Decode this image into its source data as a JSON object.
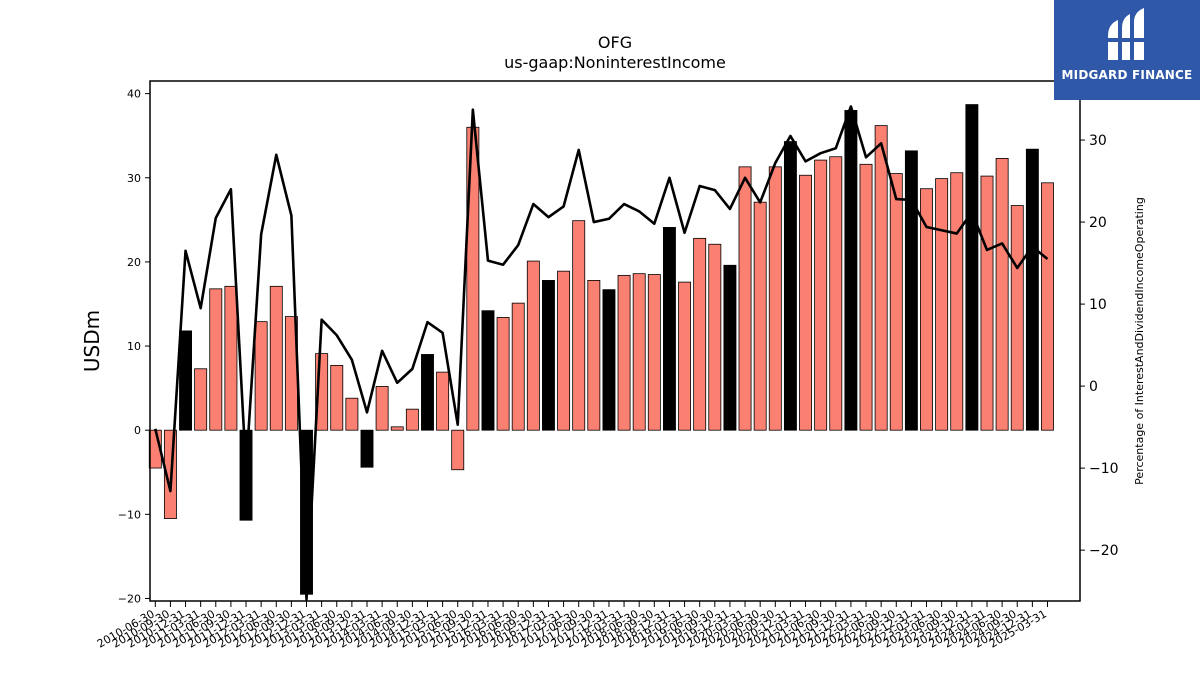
{
  "chart_data": {
    "type": "bar",
    "title": "OFG",
    "subtitle": "us-gaap:NoninterestIncome",
    "ylabel": "USDm",
    "y2label": "Percentage of InterestAndDividendIncomeOperating",
    "ylim": [
      -20.3,
      41.5
    ],
    "y2lim": [
      -26.2,
      37.2
    ],
    "yticks": [
      -20,
      -10,
      0,
      10,
      20,
      30,
      40
    ],
    "y2ticks": [
      -20,
      -10,
      0,
      10,
      20,
      30
    ],
    "colors": {
      "bar": "#fa8072",
      "q4_bar": "#000000",
      "line": "#000000"
    },
    "categories": [
      "2010-06-30",
      "2010-09-30",
      "2010-12-31",
      "2011-03-31",
      "2011-06-30",
      "2011-09-30",
      "2011-12-31",
      "2012-03-31",
      "2012-06-30",
      "2012-09-30",
      "2012-12-31",
      "2013-03-31",
      "2013-06-30",
      "2013-09-30",
      "2013-12-31",
      "2014-03-31",
      "2014-06-30",
      "2014-09-30",
      "2014-12-31",
      "2015-03-31",
      "2015-06-30",
      "2015-09-30",
      "2015-12-31",
      "2016-03-31",
      "2016-06-30",
      "2016-09-30",
      "2016-12-31",
      "2017-03-31",
      "2017-06-30",
      "2017-09-30",
      "2017-12-31",
      "2018-03-31",
      "2018-06-30",
      "2018-09-30",
      "2018-12-31",
      "2019-03-31",
      "2019-06-30",
      "2019-09-30",
      "2019-12-31",
      "2020-03-31",
      "2020-06-30",
      "2020-09-30",
      "2020-12-31",
      "2021-03-31",
      "2021-06-30",
      "2021-09-30",
      "2021-12-31",
      "2022-03-31",
      "2022-06-30",
      "2022-09-30",
      "2022-12-31",
      "2023-03-31",
      "2023-06-30",
      "2023-09-30",
      "2023-12-31",
      "2024-03-31",
      "2024-06-30",
      "2024-09-30",
      "2024-12-31",
      "2025-03-31"
    ],
    "series": [
      {
        "kind": "bar",
        "values": [
          -4.5,
          -10.5,
          11.8,
          7.3,
          16.8,
          17.1,
          -10.7,
          12.9,
          17.1,
          13.5,
          -19.5,
          9.1,
          7.7,
          3.8,
          -4.4,
          5.2,
          0.4,
          2.5,
          9.0,
          6.9,
          -4.7,
          36.0,
          14.2,
          13.4,
          15.1,
          20.1,
          17.8,
          18.9,
          24.9,
          17.8,
          16.7,
          18.4,
          18.6,
          18.5,
          24.1,
          17.6,
          22.8,
          22.1,
          19.6,
          31.3,
          27.1,
          31.3,
          34.3,
          30.3,
          32.1,
          32.5,
          38.0,
          31.6,
          36.2,
          30.5,
          33.2,
          28.7,
          29.9,
          30.6,
          38.7,
          30.2,
          32.3,
          26.7,
          33.4,
          29.4
        ]
      },
      {
        "kind": "line",
        "values": [
          -5.2,
          -12.8,
          16.5,
          9.5,
          20.5,
          24.0,
          -10.2,
          18.5,
          28.2,
          20.8,
          -26.0,
          8.1,
          6.2,
          3.2,
          -3.2,
          4.3,
          0.4,
          2.1,
          7.8,
          6.5,
          -4.7,
          33.7,
          15.3,
          14.8,
          17.2,
          22.2,
          20.6,
          21.9,
          28.8,
          20.0,
          20.4,
          22.2,
          21.3,
          19.8,
          25.4,
          18.7,
          24.4,
          23.9,
          21.6,
          25.4,
          22.4,
          27.2,
          30.5,
          27.4,
          28.4,
          29.0,
          34.1,
          27.9,
          29.6,
          22.8,
          22.7,
          19.4,
          19.0,
          18.6,
          21.2,
          16.6,
          17.4,
          14.4,
          17.0,
          15.5
        ]
      }
    ]
  },
  "watermark": {
    "name": "MIDGARD FINANCE"
  }
}
